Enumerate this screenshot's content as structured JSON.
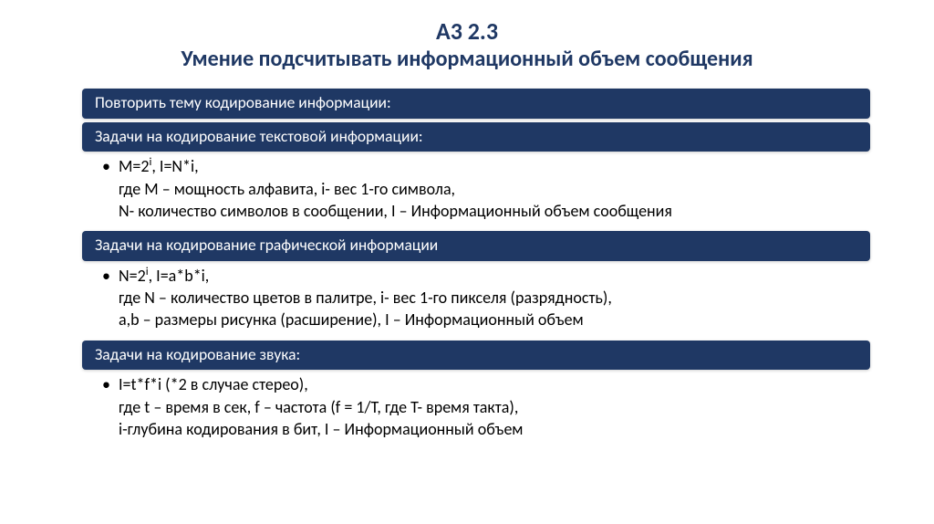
{
  "title": {
    "line1": "А3 2.3",
    "line2": "Умение подсчитывать информационный объем сообщения"
  },
  "sections": [
    {
      "header": "Повторить тему кодирование информации:",
      "body": null
    },
    {
      "header": "Задачи на кодирование текстовой информации:",
      "body": {
        "formula_html": "M=2<span class='sup'>i</span>, I=N*i,",
        "lines": [
          "где М – мощность алфавита, i- вес 1-го символа,",
          " N- количество символов в сообщении, I – Информационный объем сообщения"
        ]
      }
    },
    {
      "header": "Задачи на кодирование графической информации",
      "body": {
        "formula_html": "N=2<span class='sup'>i</span>, I=a*b*i,",
        "lines": [
          "где N – количество цветов в палитре, i- вес 1-го пикселя (разрядность),",
          " a,b – размеры рисунка (расширение), I – Информационный объем"
        ]
      }
    },
    {
      "header": "Задачи на кодирование звука:",
      "body": {
        "formula_html": "I=t*f*i (*2 в случае стерео),",
        "lines": [
          "где t – время в сек, f – частота (f = 1/T, где T- время такта),",
          "i-глубина кодирования в бит, I – Информационный объем"
        ]
      }
    }
  ],
  "colors": {
    "bar_bg": "#1f3864",
    "bar_text": "#ffffff",
    "title_color": "#1f3864",
    "body_text": "#000000",
    "page_bg": "#ffffff"
  },
  "typography": {
    "title_font_size_pt": 19,
    "subtitle_font_size_pt": 18,
    "bar_font_size_pt": 13,
    "body_font_size_pt": 13.5,
    "font_family": "Calibri"
  }
}
